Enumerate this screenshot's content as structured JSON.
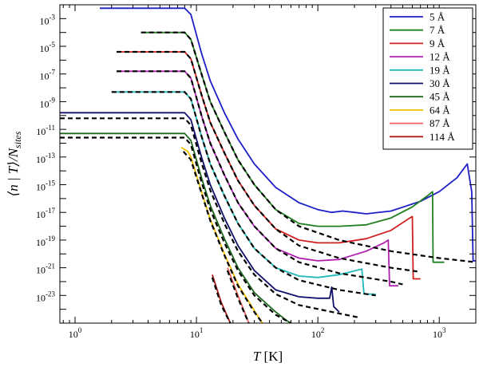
{
  "chart_data": {
    "type": "line",
    "xlabel": "T [K]",
    "ylabel": "⟨n | T⟩/N_sites",
    "xscale": "log",
    "yscale": "log",
    "xlim": [
      0.75,
      2000
    ],
    "ylim": [
      1e-25,
      0.01
    ],
    "grid": false,
    "legend_position": "top-right",
    "x_tick_labels": [
      {
        "value": 1,
        "base": "10",
        "exp": "0"
      },
      {
        "value": 10,
        "base": "10",
        "exp": "1"
      },
      {
        "value": 100,
        "base": "10",
        "exp": "2"
      },
      {
        "value": 1000,
        "base": "10",
        "exp": "3"
      }
    ],
    "y_tick_labels": [
      {
        "value": 0.001,
        "base": "10",
        "exp": "-3"
      },
      {
        "value": 1e-05,
        "base": "10",
        "exp": "-5"
      },
      {
        "value": 1e-07,
        "base": "10",
        "exp": "-7"
      },
      {
        "value": 1e-09,
        "base": "10",
        "exp": "-9"
      },
      {
        "value": 1e-11,
        "base": "10",
        "exp": "-11"
      },
      {
        "value": 1e-13,
        "base": "10",
        "exp": "-13"
      },
      {
        "value": 1e-15,
        "base": "10",
        "exp": "-15"
      },
      {
        "value": 1e-17,
        "base": "10",
        "exp": "-17"
      },
      {
        "value": 1e-19,
        "base": "10",
        "exp": "-19"
      },
      {
        "value": 1e-21,
        "base": "10",
        "exp": "-21"
      },
      {
        "value": 1e-23,
        "base": "10",
        "exp": "-23"
      }
    ],
    "series": [
      {
        "name": "5 Å",
        "color": "#1f1fc8",
        "points": [
          [
            1.6,
            -2.25
          ],
          [
            8.0,
            -2.25
          ],
          [
            9,
            -2.7
          ],
          [
            11,
            -5.5
          ],
          [
            13,
            -7.5
          ],
          [
            17,
            -9.8
          ],
          [
            22,
            -11.7
          ],
          [
            30,
            -13.5
          ],
          [
            45,
            -15.2
          ],
          [
            70,
            -16.3
          ],
          [
            100,
            -16.8
          ],
          [
            130,
            -17.0
          ],
          [
            160,
            -16.9
          ],
          [
            200,
            -17.0
          ],
          [
            250,
            -17.1
          ],
          [
            400,
            -16.9
          ],
          [
            700,
            -16.2
          ],
          [
            1000,
            -15.5
          ],
          [
            1400,
            -14.5
          ],
          [
            1700,
            -13.5
          ],
          [
            1850,
            -15.5
          ],
          [
            1900,
            -20.5
          ],
          [
            2000,
            -20.5
          ]
        ]
      },
      {
        "name": "7 Å",
        "color": "#208020",
        "points": [
          [
            3.5,
            -4.0
          ],
          [
            8.0,
            -4.0
          ],
          [
            9,
            -4.5
          ],
          [
            11,
            -7.0
          ],
          [
            13,
            -9.0
          ],
          [
            17,
            -11.2
          ],
          [
            22,
            -13.2
          ],
          [
            30,
            -15.0
          ],
          [
            45,
            -16.8
          ],
          [
            70,
            -17.8
          ],
          [
            100,
            -18.0
          ],
          [
            150,
            -18.0
          ],
          [
            250,
            -17.9
          ],
          [
            400,
            -17.4
          ],
          [
            600,
            -16.6
          ],
          [
            800,
            -15.8
          ],
          [
            880,
            -15.5
          ],
          [
            890,
            -20.6
          ],
          [
            1100,
            -20.6
          ]
        ]
      },
      {
        "name": "9 Å",
        "color": "#d02020",
        "points": [
          [
            2.2,
            -5.4
          ],
          [
            8.0,
            -5.4
          ],
          [
            9,
            -5.9
          ],
          [
            11,
            -8.5
          ],
          [
            13,
            -10.5
          ],
          [
            17,
            -12.7
          ],
          [
            22,
            -14.7
          ],
          [
            30,
            -16.5
          ],
          [
            45,
            -18.2
          ],
          [
            70,
            -19.0
          ],
          [
            100,
            -19.2
          ],
          [
            150,
            -19.2
          ],
          [
            250,
            -18.9
          ],
          [
            400,
            -18.3
          ],
          [
            550,
            -17.5
          ],
          [
            600,
            -17.3
          ],
          [
            610,
            -21.8
          ],
          [
            700,
            -21.8
          ]
        ]
      },
      {
        "name": "12 Å",
        "color": "#b020b0",
        "points": [
          [
            2.2,
            -6.8
          ],
          [
            8.0,
            -6.8
          ],
          [
            9,
            -7.3
          ],
          [
            11,
            -10.0
          ],
          [
            13,
            -12.0
          ],
          [
            17,
            -14.3
          ],
          [
            22,
            -16.3
          ],
          [
            30,
            -18.0
          ],
          [
            45,
            -19.6
          ],
          [
            70,
            -20.3
          ],
          [
            100,
            -20.5
          ],
          [
            150,
            -20.4
          ],
          [
            250,
            -19.8
          ],
          [
            350,
            -19.2
          ],
          [
            380,
            -19.0
          ],
          [
            390,
            -22.3
          ],
          [
            460,
            -22.3
          ]
        ]
      },
      {
        "name": "19 Å",
        "color": "#20b8b8",
        "points": [
          [
            2.0,
            -8.3
          ],
          [
            8.0,
            -8.3
          ],
          [
            9,
            -8.8
          ],
          [
            11,
            -11.5
          ],
          [
            13,
            -13.5
          ],
          [
            17,
            -15.8
          ],
          [
            22,
            -17.8
          ],
          [
            30,
            -19.6
          ],
          [
            45,
            -21.0
          ],
          [
            70,
            -21.6
          ],
          [
            100,
            -21.7
          ],
          [
            150,
            -21.5
          ],
          [
            230,
            -21.1
          ],
          [
            240,
            -22.9
          ],
          [
            300,
            -22.9
          ]
        ]
      },
      {
        "name": "30 Å",
        "color": "#10106a",
        "points": [
          [
            0.75,
            -9.8
          ],
          [
            8.0,
            -9.8
          ],
          [
            9,
            -10.3
          ],
          [
            11,
            -13.0
          ],
          [
            13,
            -15.0
          ],
          [
            17,
            -17.4
          ],
          [
            22,
            -19.4
          ],
          [
            30,
            -21.2
          ],
          [
            45,
            -22.6
          ],
          [
            70,
            -23.1
          ],
          [
            100,
            -23.2
          ],
          [
            125,
            -23.2
          ],
          [
            130,
            -22.4
          ],
          [
            135,
            -23.8
          ],
          [
            150,
            -24.2
          ]
        ]
      },
      {
        "name": "45 Å",
        "color": "#1f6a1f",
        "points": [
          [
            0.75,
            -11.3
          ],
          [
            8.0,
            -11.3
          ],
          [
            9,
            -11.8
          ],
          [
            11,
            -14.5
          ],
          [
            13,
            -16.5
          ],
          [
            17,
            -18.9
          ],
          [
            22,
            -21.0
          ],
          [
            30,
            -22.8
          ],
          [
            45,
            -24.2
          ],
          [
            55,
            -24.8
          ],
          [
            60,
            -25.0
          ]
        ]
      },
      {
        "name": "64 Å",
        "color": "#f0c000",
        "points": [
          [
            7.5,
            -12.3
          ],
          [
            8.5,
            -12.6
          ],
          [
            9,
            -13.0
          ],
          [
            11,
            -15.5
          ],
          [
            13,
            -17.5
          ],
          [
            17,
            -20.0
          ],
          [
            22,
            -22.2
          ],
          [
            30,
            -24.1
          ],
          [
            35,
            -25.0
          ]
        ]
      },
      {
        "name": "87 Å",
        "color": "#f06060",
        "points": [
          [
            18,
            -21.0
          ],
          [
            22,
            -23.0
          ],
          [
            27,
            -25.0
          ]
        ]
      },
      {
        "name": "114 Å",
        "color": "#b01818",
        "points": [
          [
            13.5,
            -21.5
          ],
          [
            16,
            -23.5
          ],
          [
            19,
            -25.0
          ]
        ]
      }
    ],
    "dashed_reference_curves": [
      {
        "color": "#000000",
        "points": [
          [
            3.5,
            -4.0
          ],
          [
            8.0,
            -4.0
          ],
          [
            9,
            -4.5
          ],
          [
            11,
            -7.0
          ],
          [
            13,
            -9.0
          ],
          [
            17,
            -11.2
          ],
          [
            22,
            -13.2
          ],
          [
            30,
            -15.0
          ],
          [
            45,
            -16.8
          ],
          [
            70,
            -18.0
          ],
          [
            150,
            -19.0
          ],
          [
            400,
            -19.8
          ],
          [
            1000,
            -20.3
          ],
          [
            2000,
            -20.6
          ]
        ]
      },
      {
        "color": "#000000",
        "points": [
          [
            2.2,
            -5.4
          ],
          [
            8.0,
            -5.4
          ],
          [
            9,
            -5.9
          ],
          [
            11,
            -8.5
          ],
          [
            13,
            -10.5
          ],
          [
            17,
            -12.7
          ],
          [
            22,
            -14.7
          ],
          [
            30,
            -16.5
          ],
          [
            45,
            -18.2
          ],
          [
            70,
            -19.4
          ],
          [
            150,
            -20.3
          ],
          [
            400,
            -21.0
          ],
          [
            700,
            -21.3
          ]
        ]
      },
      {
        "color": "#000000",
        "points": [
          [
            2.2,
            -6.8
          ],
          [
            8.0,
            -6.8
          ],
          [
            9,
            -7.3
          ],
          [
            11,
            -10.0
          ],
          [
            13,
            -12.0
          ],
          [
            17,
            -14.3
          ],
          [
            22,
            -16.3
          ],
          [
            30,
            -18.0
          ],
          [
            45,
            -19.6
          ],
          [
            70,
            -20.6
          ],
          [
            150,
            -21.4
          ],
          [
            400,
            -22.0
          ],
          [
            500,
            -22.2
          ]
        ]
      },
      {
        "color": "#000000",
        "points": [
          [
            2.0,
            -8.3
          ],
          [
            8.0,
            -8.3
          ],
          [
            9,
            -8.8
          ],
          [
            11,
            -11.5
          ],
          [
            13,
            -13.5
          ],
          [
            17,
            -15.8
          ],
          [
            22,
            -17.8
          ],
          [
            30,
            -19.6
          ],
          [
            45,
            -21.0
          ],
          [
            70,
            -21.9
          ],
          [
            150,
            -22.6
          ],
          [
            300,
            -23.0
          ]
        ]
      },
      {
        "color": "#000000",
        "points": [
          [
            0.75,
            -10.2
          ],
          [
            8.0,
            -10.2
          ],
          [
            9,
            -10.7
          ],
          [
            11,
            -13.4
          ],
          [
            13,
            -15.4
          ],
          [
            17,
            -17.8
          ],
          [
            22,
            -19.8
          ],
          [
            30,
            -21.5
          ],
          [
            45,
            -22.9
          ],
          [
            70,
            -23.7
          ],
          [
            150,
            -24.3
          ],
          [
            220,
            -24.6
          ]
        ]
      },
      {
        "color": "#000000",
        "points": [
          [
            0.75,
            -11.6
          ],
          [
            8.0,
            -11.6
          ],
          [
            9,
            -12.1
          ],
          [
            11,
            -14.8
          ],
          [
            13,
            -16.8
          ],
          [
            17,
            -19.2
          ],
          [
            22,
            -21.2
          ],
          [
            30,
            -23.0
          ],
          [
            45,
            -24.4
          ],
          [
            60,
            -25.0
          ]
        ]
      },
      {
        "color": "#000000",
        "points": [
          [
            7.8,
            -12.6
          ],
          [
            9,
            -13.2
          ],
          [
            11,
            -15.6
          ],
          [
            13,
            -17.6
          ],
          [
            17,
            -20.1
          ],
          [
            22,
            -22.3
          ],
          [
            30,
            -24.2
          ],
          [
            35,
            -25.0
          ]
        ]
      },
      {
        "color": "#000000",
        "points": [
          [
            18,
            -21.2
          ],
          [
            22,
            -23.2
          ],
          [
            27,
            -25.0
          ]
        ]
      },
      {
        "color": "#000000",
        "points": [
          [
            13.5,
            -21.7
          ],
          [
            16,
            -23.7
          ],
          [
            19,
            -25.0
          ]
        ]
      }
    ]
  }
}
